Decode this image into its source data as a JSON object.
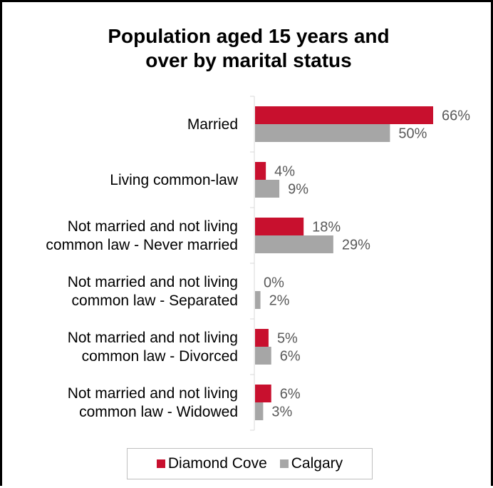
{
  "colors": {
    "diamond_cove": "#c8102e",
    "calgary": "#a6a6a6",
    "axis": "#d9d9d9",
    "label": "#595959"
  },
  "chart_data": {
    "type": "bar",
    "orientation": "horizontal",
    "title_lines": [
      "Population aged 15 years and",
      "over by marital status"
    ],
    "categories": [
      [
        "Married"
      ],
      [
        "Living common-law"
      ],
      [
        "Not married and not living",
        "common law - Never married"
      ],
      [
        "Not married and not living",
        "common law - Separated"
      ],
      [
        "Not married and not living",
        "common law - Divorced"
      ],
      [
        "Not married and not living",
        "common law - Widowed"
      ]
    ],
    "series": [
      {
        "name": "Diamond Cove",
        "values": [
          66,
          4,
          18,
          0,
          5,
          6
        ],
        "labels": [
          "66%",
          "4%",
          "18%",
          "0%",
          "5%",
          "6%"
        ]
      },
      {
        "name": "Calgary",
        "values": [
          50,
          9,
          29,
          2,
          6,
          3
        ],
        "labels": [
          "50%",
          "9%",
          "29%",
          "2%",
          "6%",
          "3%"
        ]
      }
    ],
    "unit": "%",
    "grid": false,
    "legend_position": "bottom"
  }
}
